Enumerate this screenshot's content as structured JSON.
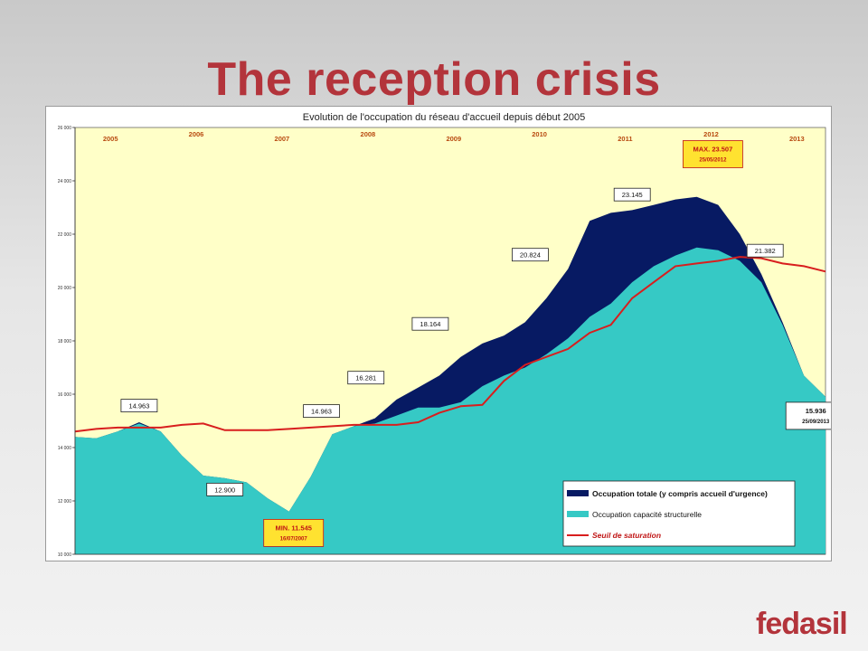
{
  "page": {
    "title": "The reception crisis",
    "logo_text": "fedasil",
    "colors": {
      "title": "#b3343b",
      "plot_bg": "#ffffc8",
      "total_fill": "#071a63",
      "structural_fill": "#36c9c5",
      "saturation_line": "#d81e1e"
    }
  },
  "chart_data": {
    "type": "area",
    "title": "Evolution de l'occupation du réseau d'accueil depuis début 2005",
    "xlabel": "",
    "ylabel": "",
    "ylim": [
      10000,
      26000
    ],
    "ytick_labels": [
      "10 000",
      "12 000",
      "14 000",
      "16 000",
      "18 000",
      "20 000",
      "22 000",
      "24 000",
      "26 000"
    ],
    "x_date_range": [
      "2005-01-01",
      "2013-10-01"
    ],
    "year_labels": [
      "2005",
      "2006",
      "2007",
      "2008",
      "2009",
      "2010",
      "2011",
      "2012",
      "2013"
    ],
    "x": [
      "2005-01",
      "2005-04",
      "2005-07",
      "2005-10",
      "2006-01",
      "2006-04",
      "2006-07",
      "2006-10",
      "2007-01",
      "2007-04",
      "2007-07",
      "2007-10",
      "2008-01",
      "2008-04",
      "2008-07",
      "2008-10",
      "2009-01",
      "2009-04",
      "2009-07",
      "2009-10",
      "2010-01",
      "2010-04",
      "2010-07",
      "2010-10",
      "2011-01",
      "2011-04",
      "2011-07",
      "2011-10",
      "2012-01",
      "2012-04",
      "2012-07",
      "2012-10",
      "2013-01",
      "2013-04",
      "2013-07",
      "2013-10"
    ],
    "series": [
      {
        "name": "Occupation totale (y compris accueil d'urgence)",
        "values": [
          14400,
          14350,
          14600,
          14950,
          14600,
          13700,
          12950,
          12850,
          12700,
          12100,
          11600,
          12900,
          14500,
          14800,
          15100,
          15800,
          16250,
          16700,
          17400,
          17900,
          18200,
          18700,
          19600,
          20700,
          22500,
          22800,
          22900,
          23100,
          23300,
          23400,
          23100,
          22000,
          20500,
          18700,
          16700,
          15900
        ]
      },
      {
        "name": "Occupation capacité structurelle",
        "values": [
          14400,
          14350,
          14600,
          14900,
          14600,
          13700,
          12950,
          12850,
          12700,
          12100,
          11600,
          12900,
          14500,
          14800,
          14900,
          15200,
          15500,
          15500,
          15700,
          16300,
          16700,
          17000,
          17500,
          18100,
          18900,
          19400,
          20200,
          20800,
          21200,
          21500,
          21400,
          21000,
          20200,
          18600,
          16700,
          15900
        ]
      },
      {
        "name": "Seuil de saturation",
        "values": [
          14600,
          14700,
          14750,
          14750,
          14750,
          14850,
          14900,
          14650,
          14650,
          14650,
          14700,
          14750,
          14800,
          14850,
          14850,
          14850,
          14950,
          15300,
          15550,
          15600,
          16500,
          17100,
          17400,
          17700,
          18300,
          18600,
          19600,
          20200,
          20800,
          20900,
          21000,
          21150,
          21100,
          20900,
          20800,
          20600
        ]
      }
    ],
    "annotations": [
      {
        "text": "14.963",
        "x": "2005-10",
        "y": 14963
      },
      {
        "text": "12.900",
        "x": "2006-10",
        "y": 12900
      },
      {
        "text": "MIN. 11.545",
        "date": "16/07/2007",
        "x": "2007-07",
        "y": 11545
      },
      {
        "text": "14.963",
        "x": "2008-01",
        "y": 14963
      },
      {
        "text": "16.281",
        "x": "2008-07",
        "y": 16281
      },
      {
        "text": "18.164",
        "x": "2009-04",
        "y": 18164
      },
      {
        "text": "20.824",
        "x": "2010-07",
        "y": 20824
      },
      {
        "text": "23.145",
        "x": "2011-07",
        "y": 23145
      },
      {
        "text": "MAX. 23.507",
        "date": "25/05/2012",
        "x": "2012-05",
        "y": 23507
      },
      {
        "text": "21.382",
        "x": "2012-10",
        "y": 21382
      },
      {
        "text": "15.936",
        "date": "25/09/2013",
        "x": "2013-09",
        "y": 15936
      }
    ],
    "legend": {
      "position": "bottom-right"
    },
    "grid": false
  }
}
